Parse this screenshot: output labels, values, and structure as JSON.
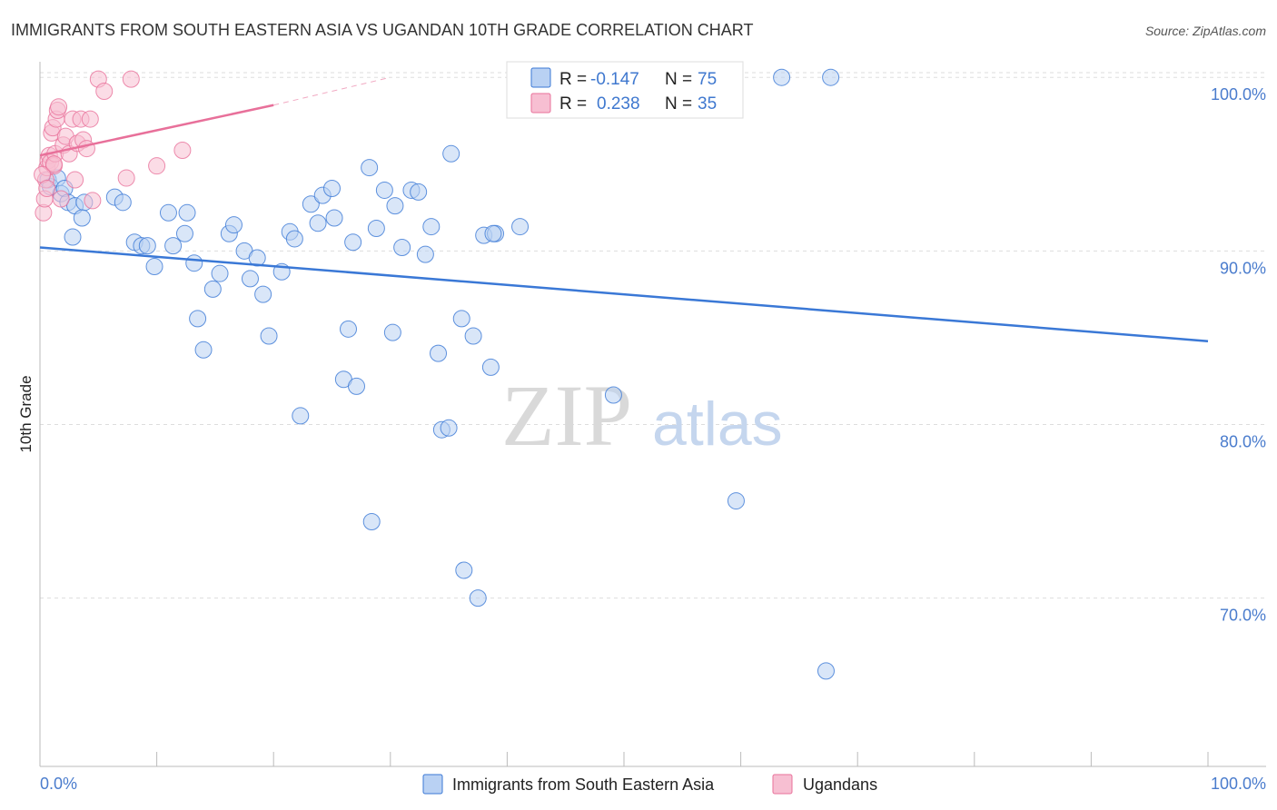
{
  "title": "IMMIGRANTS FROM SOUTH EASTERN ASIA VS UGANDAN 10TH GRADE CORRELATION CHART",
  "source": "Source: ZipAtlas.com",
  "watermark": {
    "zip": "ZIP",
    "atlas": "atlas"
  },
  "colors": {
    "blue": "#3a78d6",
    "blue_fill": "#b9d1f3",
    "pink": "#e8709a",
    "pink_fill": "#f7bfd2",
    "grid": "#dddddd",
    "axis_text": "#4a7ccd"
  },
  "legend": {
    "rows": [
      {
        "r_label": "R =",
        "r_value": "-0.147",
        "n_label": "N =",
        "n_value": "75",
        "color": "blue"
      },
      {
        "r_label": "R =",
        "r_value": "0.238",
        "n_label": "N =",
        "n_value": "35",
        "color": "pink"
      }
    ]
  },
  "bottom_legend": [
    "Immigrants from South Eastern Asia",
    "Ugandans"
  ],
  "chart_data": {
    "type": "scatter",
    "title": "IMMIGRANTS FROM SOUTH EASTERN ASIA VS UGANDAN 10TH GRADE CORRELATION CHART",
    "xlabel": "",
    "ylabel": "10th Grade",
    "xlim": [
      0,
      100
    ],
    "ylim": [
      60.3,
      100.9
    ],
    "x_tick_labels": [
      "0.0%",
      "100.0%"
    ],
    "y_ticks": [
      100,
      90,
      80,
      70
    ],
    "y_tick_labels": [
      "100.0%",
      "90.0%",
      "80.0%",
      "70.0%"
    ],
    "grid": true,
    "legend_position": "top-center",
    "series": [
      {
        "name": "Immigrants from South Eastern Asia",
        "color": "blue",
        "r": -0.147,
        "n": 75,
        "trend": {
          "x0": 0,
          "y0": 90.2,
          "x1": 100,
          "y1": 84.8,
          "dashed": false
        },
        "points": [
          [
            0.7,
            94.1
          ],
          [
            0.9,
            93.7
          ],
          [
            1.5,
            94.2
          ],
          [
            1.8,
            93.3
          ],
          [
            2.1,
            93.6
          ],
          [
            2.4,
            92.8
          ],
          [
            3.0,
            92.6
          ],
          [
            3.8,
            92.8
          ],
          [
            3.6,
            91.9
          ],
          [
            2.8,
            90.8
          ],
          [
            6.4,
            93.1
          ],
          [
            7.1,
            92.8
          ],
          [
            8.1,
            90.5
          ],
          [
            8.7,
            90.3
          ],
          [
            9.2,
            90.3
          ],
          [
            9.8,
            89.1
          ],
          [
            11.0,
            92.2
          ],
          [
            12.4,
            91.0
          ],
          [
            11.4,
            90.3
          ],
          [
            12.6,
            92.2
          ],
          [
            13.2,
            89.3
          ],
          [
            14.0,
            84.3
          ],
          [
            13.5,
            86.1
          ],
          [
            14.8,
            87.8
          ],
          [
            15.4,
            88.7
          ],
          [
            16.2,
            91.0
          ],
          [
            16.6,
            91.5
          ],
          [
            17.5,
            90.0
          ],
          [
            18.0,
            88.4
          ],
          [
            18.6,
            89.6
          ],
          [
            19.1,
            87.5
          ],
          [
            19.6,
            85.1
          ],
          [
            20.7,
            88.8
          ],
          [
            21.4,
            91.1
          ],
          [
            21.8,
            90.7
          ],
          [
            22.3,
            80.5
          ],
          [
            23.2,
            92.7
          ],
          [
            23.8,
            91.6
          ],
          [
            24.2,
            93.2
          ],
          [
            25.0,
            93.6
          ],
          [
            25.2,
            91.9
          ],
          [
            26.0,
            82.6
          ],
          [
            26.4,
            85.5
          ],
          [
            26.8,
            90.5
          ],
          [
            27.1,
            82.2
          ],
          [
            28.2,
            94.8
          ],
          [
            28.4,
            74.4
          ],
          [
            28.8,
            91.3
          ],
          [
            29.5,
            93.5
          ],
          [
            30.2,
            85.3
          ],
          [
            30.4,
            92.6
          ],
          [
            31.0,
            90.2
          ],
          [
            31.8,
            93.5
          ],
          [
            32.4,
            93.4
          ],
          [
            33.0,
            89.8
          ],
          [
            33.5,
            91.4
          ],
          [
            34.1,
            84.1
          ],
          [
            34.4,
            79.7
          ],
          [
            35.0,
            79.8
          ],
          [
            35.2,
            95.6
          ],
          [
            36.1,
            86.1
          ],
          [
            36.3,
            71.6
          ],
          [
            37.1,
            85.1
          ],
          [
            37.5,
            70.0
          ],
          [
            38.0,
            90.9
          ],
          [
            38.6,
            83.3
          ],
          [
            39.0,
            91.0
          ],
          [
            38.8,
            91.0
          ],
          [
            41.1,
            91.4
          ],
          [
            43.2,
            100.0
          ],
          [
            49.1,
            81.7
          ],
          [
            59.6,
            75.6
          ],
          [
            63.5,
            100.0
          ],
          [
            67.3,
            65.8
          ],
          [
            67.7,
            100.0
          ]
        ]
      },
      {
        "name": "Ugandans",
        "color": "pink",
        "r": 0.238,
        "n": 35,
        "trend": {
          "x0": 0,
          "y0": 95.5,
          "x1": 20,
          "y1": 98.4,
          "dashed": false,
          "extend_to": {
            "x": 30,
            "y": 100.0
          }
        },
        "points": [
          [
            0.3,
            92.2
          ],
          [
            0.4,
            93.0
          ],
          [
            0.5,
            94.1
          ],
          [
            0.6,
            94.8
          ],
          [
            0.7,
            95.2
          ],
          [
            0.8,
            95.5
          ],
          [
            0.9,
            95.1
          ],
          [
            1.0,
            96.8
          ],
          [
            1.1,
            97.1
          ],
          [
            1.2,
            94.9
          ],
          [
            1.3,
            95.6
          ],
          [
            1.4,
            97.6
          ],
          [
            1.5,
            98.1
          ],
          [
            1.6,
            98.3
          ],
          [
            1.8,
            93.0
          ],
          [
            2.0,
            96.1
          ],
          [
            2.2,
            96.6
          ],
          [
            2.5,
            95.6
          ],
          [
            2.8,
            97.6
          ],
          [
            3.0,
            94.1
          ],
          [
            3.2,
            96.2
          ],
          [
            3.5,
            97.6
          ],
          [
            3.7,
            96.4
          ],
          [
            4.0,
            95.9
          ],
          [
            4.3,
            97.6
          ],
          [
            4.5,
            92.9
          ],
          [
            5.0,
            99.9
          ],
          [
            5.5,
            99.2
          ],
          [
            7.4,
            94.2
          ],
          [
            7.8,
            99.9
          ],
          [
            10.0,
            94.9
          ],
          [
            12.2,
            95.8
          ],
          [
            0.2,
            94.4
          ],
          [
            0.6,
            93.6
          ],
          [
            1.2,
            95.0
          ]
        ]
      }
    ]
  }
}
